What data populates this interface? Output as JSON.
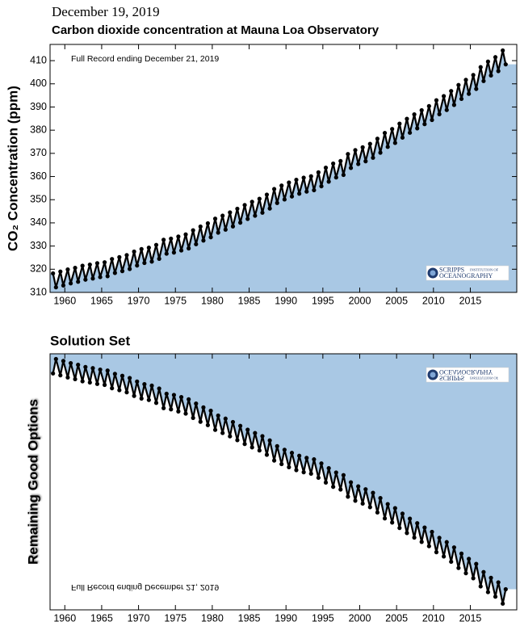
{
  "date": "December 19, 2019",
  "chart_data": [
    {
      "type": "scatter",
      "title": "Carbon dioxide concentration at Mauna Loa Observatory",
      "ylabel": "CO₂ Concentration (ppm)",
      "annotation": "Full Record ending December 21, 2019",
      "logo": [
        "SCRIPPS",
        "INSTITUTION OF",
        "OCEANOGRAPHY"
      ],
      "color": "#000000",
      "fill": "#a9c8e4",
      "xlim": [
        1958,
        2021.3
      ],
      "ylim": [
        310,
        417
      ],
      "xticks": [
        1960,
        1965,
        1970,
        1975,
        1980,
        1985,
        1990,
        1995,
        2000,
        2005,
        2010,
        2015
      ],
      "yticks": [
        310,
        320,
        330,
        340,
        350,
        360,
        370,
        380,
        390,
        400,
        410
      ],
      "x": [
        1958.4,
        1958.8,
        1959.4,
        1959.8,
        1960.4,
        1960.8,
        1961.4,
        1961.8,
        1962.4,
        1962.8,
        1963.4,
        1963.8,
        1964.4,
        1964.8,
        1965.4,
        1965.8,
        1966.4,
        1966.8,
        1967.4,
        1967.8,
        1968.4,
        1968.8,
        1969.4,
        1969.8,
        1970.4,
        1970.8,
        1971.4,
        1971.8,
        1972.4,
        1972.8,
        1973.4,
        1973.8,
        1974.4,
        1974.8,
        1975.4,
        1975.8,
        1976.4,
        1976.8,
        1977.4,
        1977.8,
        1978.4,
        1978.8,
        1979.4,
        1979.8,
        1980.4,
        1980.8,
        1981.4,
        1981.8,
        1982.4,
        1982.8,
        1983.4,
        1983.8,
        1984.4,
        1984.8,
        1985.4,
        1985.8,
        1986.4,
        1986.8,
        1987.4,
        1987.8,
        1988.4,
        1988.8,
        1989.4,
        1989.8,
        1990.4,
        1990.8,
        1991.4,
        1991.8,
        1992.4,
        1992.8,
        1993.4,
        1993.8,
        1994.4,
        1994.8,
        1995.4,
        1995.8,
        1996.4,
        1996.8,
        1997.4,
        1997.8,
        1998.4,
        1998.8,
        1999.4,
        1999.8,
        2000.4,
        2000.8,
        2001.4,
        2001.8,
        2002.4,
        2002.8,
        2003.4,
        2003.8,
        2004.4,
        2004.8,
        2005.4,
        2005.8,
        2006.4,
        2006.8,
        2007.4,
        2007.8,
        2008.4,
        2008.8,
        2009.4,
        2009.8,
        2010.4,
        2010.8,
        2011.4,
        2011.8,
        2012.4,
        2012.8,
        2013.4,
        2013.8,
        2014.4,
        2014.8,
        2015.4,
        2015.8,
        2016.4,
        2016.8,
        2017.4,
        2017.8,
        2018.4,
        2018.8,
        2019.4,
        2019.8
      ],
      "values": [
        318.2,
        312.2,
        319.0,
        313.0,
        319.9,
        313.9,
        320.6,
        314.6,
        321.5,
        315.5,
        322.0,
        316.0,
        322.6,
        316.6,
        323.0,
        317.0,
        324.4,
        318.4,
        325.2,
        319.2,
        326.1,
        320.1,
        327.6,
        321.6,
        328.7,
        322.7,
        329.3,
        323.3,
        330.5,
        324.5,
        332.7,
        326.7,
        333.2,
        327.2,
        334.1,
        328.1,
        335.0,
        329.0,
        336.8,
        330.8,
        338.4,
        332.4,
        339.8,
        333.8,
        341.8,
        335.8,
        343.1,
        337.1,
        344.5,
        338.5,
        346.1,
        340.1,
        347.7,
        341.7,
        349.1,
        343.1,
        350.4,
        344.4,
        352.2,
        346.2,
        354.6,
        348.6,
        356.1,
        350.1,
        357.4,
        351.4,
        358.6,
        352.6,
        359.5,
        353.5,
        360.1,
        354.1,
        361.8,
        355.8,
        363.8,
        357.8,
        365.6,
        359.6,
        366.7,
        360.7,
        369.7,
        363.7,
        371.4,
        365.4,
        372.6,
        366.6,
        374.1,
        368.1,
        376.3,
        370.3,
        378.8,
        372.8,
        380.5,
        374.5,
        382.8,
        376.8,
        384.9,
        378.9,
        386.8,
        380.8,
        388.6,
        382.6,
        390.4,
        384.4,
        392.9,
        386.9,
        394.7,
        388.7,
        396.9,
        390.9,
        399.5,
        393.5,
        401.7,
        395.7,
        403.8,
        397.8,
        407.2,
        401.2,
        409.6,
        403.6,
        411.5,
        405.5,
        414.4,
        408.4
      ]
    },
    {
      "type": "scatter",
      "title": "Solution Set",
      "ylabel": "Remaining Good Options",
      "annotation": "Full Record ending December 21, 2019",
      "logo": [
        "SCRIPPS",
        "INSTITUTION OF",
        "OCEANOGRAPHY"
      ],
      "mirrored": true,
      "color": "#000000",
      "fill": "#a9c8e4",
      "xlim": [
        1958,
        2021.3
      ],
      "ylim": [
        417,
        310
      ],
      "xticks": [
        1960,
        1965,
        1970,
        1975,
        1980,
        1985,
        1990,
        1995,
        2000,
        2005,
        2010,
        2015
      ],
      "x": [
        1958.4,
        1958.8,
        1959.4,
        1959.8,
        1960.4,
        1960.8,
        1961.4,
        1961.8,
        1962.4,
        1962.8,
        1963.4,
        1963.8,
        1964.4,
        1964.8,
        1965.4,
        1965.8,
        1966.4,
        1966.8,
        1967.4,
        1967.8,
        1968.4,
        1968.8,
        1969.4,
        1969.8,
        1970.4,
        1970.8,
        1971.4,
        1971.8,
        1972.4,
        1972.8,
        1973.4,
        1973.8,
        1974.4,
        1974.8,
        1975.4,
        1975.8,
        1976.4,
        1976.8,
        1977.4,
        1977.8,
        1978.4,
        1978.8,
        1979.4,
        1979.8,
        1980.4,
        1980.8,
        1981.4,
        1981.8,
        1982.4,
        1982.8,
        1983.4,
        1983.8,
        1984.4,
        1984.8,
        1985.4,
        1985.8,
        1986.4,
        1986.8,
        1987.4,
        1987.8,
        1988.4,
        1988.8,
        1989.4,
        1989.8,
        1990.4,
        1990.8,
        1991.4,
        1991.8,
        1992.4,
        1992.8,
        1993.4,
        1993.8,
        1994.4,
        1994.8,
        1995.4,
        1995.8,
        1996.4,
        1996.8,
        1997.4,
        1997.8,
        1998.4,
        1998.8,
        1999.4,
        1999.8,
        2000.4,
        2000.8,
        2001.4,
        2001.8,
        2002.4,
        2002.8,
        2003.4,
        2003.8,
        2004.4,
        2004.8,
        2005.4,
        2005.8,
        2006.4,
        2006.8,
        2007.4,
        2007.8,
        2008.4,
        2008.8,
        2009.4,
        2009.8,
        2010.4,
        2010.8,
        2011.4,
        2011.8,
        2012.4,
        2012.8,
        2013.4,
        2013.8,
        2014.4,
        2014.8,
        2015.4,
        2015.8,
        2016.4,
        2016.8,
        2017.4,
        2017.8,
        2018.4,
        2018.8,
        2019.4,
        2019.8
      ],
      "values": [
        318.2,
        312.2,
        319.0,
        313.0,
        319.9,
        313.9,
        320.6,
        314.6,
        321.5,
        315.5,
        322.0,
        316.0,
        322.6,
        316.6,
        323.0,
        317.0,
        324.4,
        318.4,
        325.2,
        319.2,
        326.1,
        320.1,
        327.6,
        321.6,
        328.7,
        322.7,
        329.3,
        323.3,
        330.5,
        324.5,
        332.7,
        326.7,
        333.2,
        327.2,
        334.1,
        328.1,
        335.0,
        329.0,
        336.8,
        330.8,
        338.4,
        332.4,
        339.8,
        333.8,
        341.8,
        335.8,
        343.1,
        337.1,
        344.5,
        338.5,
        346.1,
        340.1,
        347.7,
        341.7,
        349.1,
        343.1,
        350.4,
        344.4,
        352.2,
        346.2,
        354.6,
        348.6,
        356.1,
        350.1,
        357.4,
        351.4,
        358.6,
        352.6,
        359.5,
        353.5,
        360.1,
        354.1,
        361.8,
        355.8,
        363.8,
        357.8,
        365.6,
        359.6,
        366.7,
        360.7,
        369.7,
        363.7,
        371.4,
        365.4,
        372.6,
        366.6,
        374.1,
        368.1,
        376.3,
        370.3,
        378.8,
        372.8,
        380.5,
        374.5,
        382.8,
        376.8,
        384.9,
        378.9,
        386.8,
        380.8,
        388.6,
        382.6,
        390.4,
        384.4,
        392.9,
        386.9,
        394.7,
        388.7,
        396.9,
        390.9,
        399.5,
        393.5,
        401.7,
        395.7,
        403.8,
        397.8,
        407.2,
        401.2,
        409.6,
        403.6,
        411.5,
        405.5,
        414.4,
        408.4
      ]
    }
  ]
}
